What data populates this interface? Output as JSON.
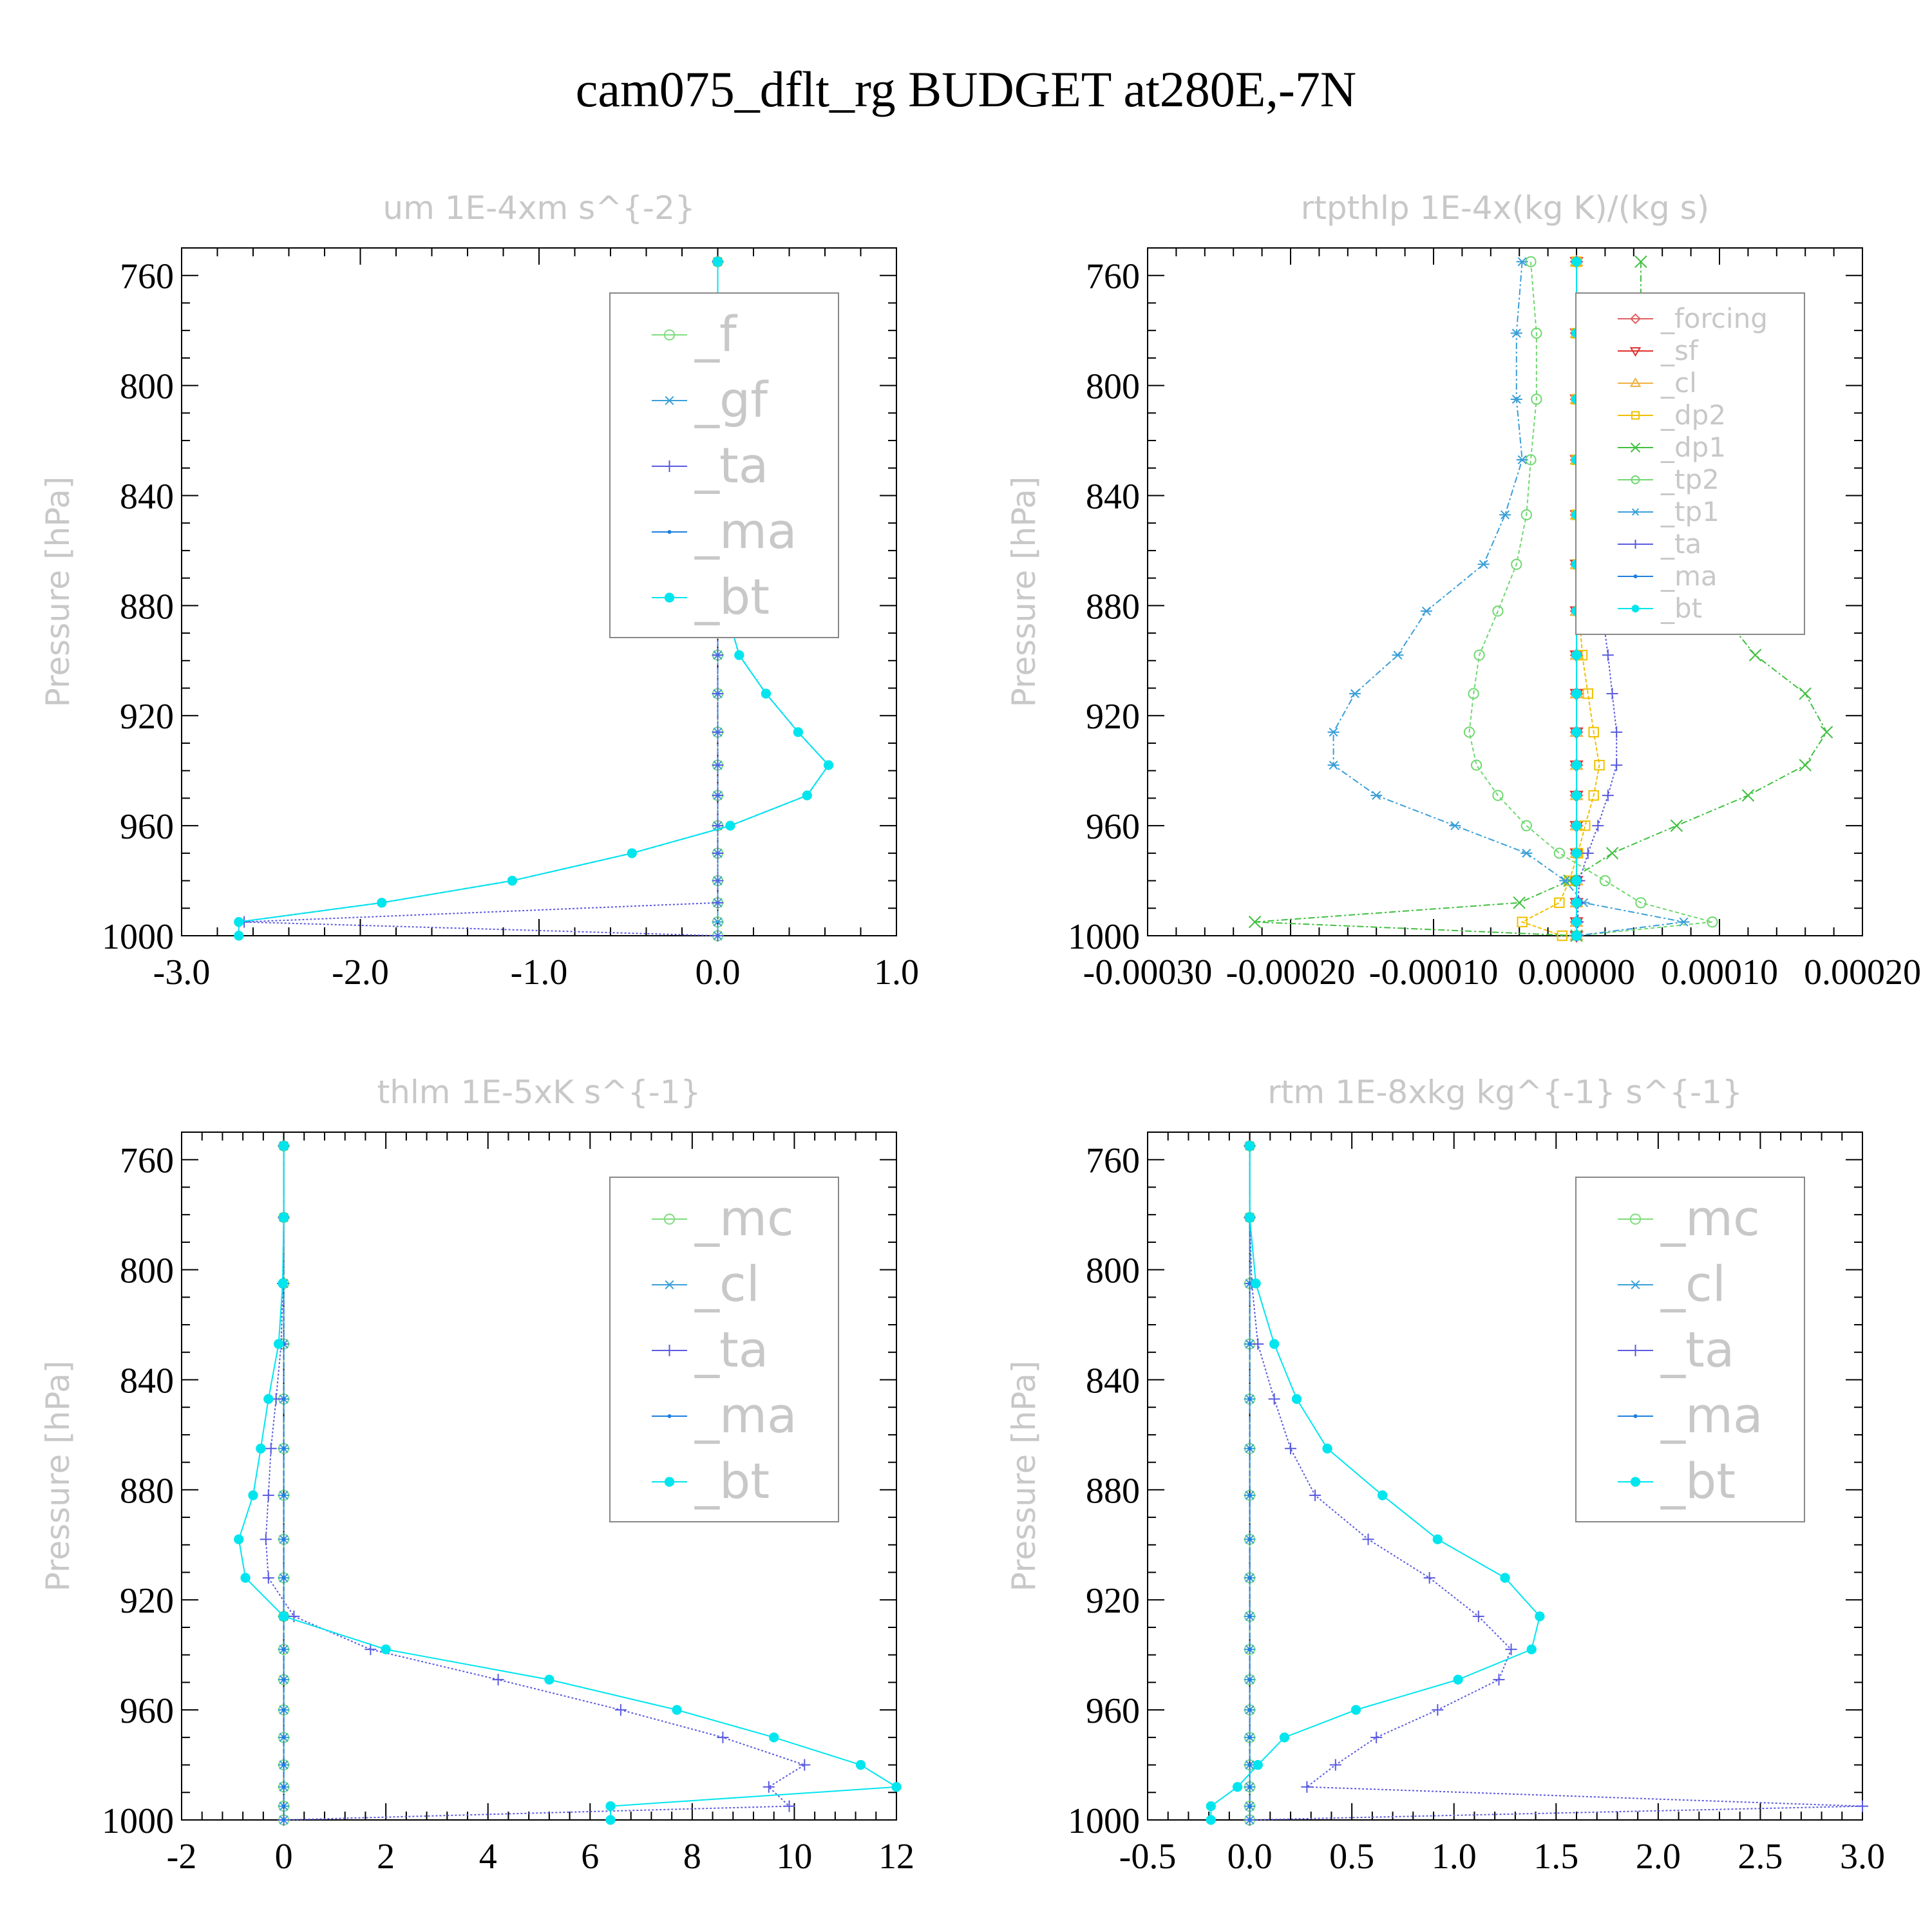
{
  "title": "cam075_dflt_rg  BUDGET at280E,-7N",
  "chart_data": [
    {
      "type": "line",
      "title": "um   1E-4xm s^{-2}",
      "ylabel": "Pressure [hPa]",
      "xlim": [
        -3.0,
        1.0
      ],
      "xticks": [
        "-3.0",
        "-2.0",
        "-1.0",
        "0.0",
        "1.0"
      ],
      "xtick_values": [
        -3,
        -2,
        -1,
        0,
        1
      ],
      "ylim": [
        750,
        1000
      ],
      "yticks": [
        760,
        800,
        840,
        880,
        920,
        960,
        1000
      ],
      "levels": [
        755,
        781,
        805,
        827,
        847,
        865,
        882,
        898,
        912,
        926,
        938,
        949,
        960,
        970,
        980,
        988,
        995,
        1000
      ],
      "legend": {
        "position": "top-right",
        "font_size": "large"
      },
      "series": [
        {
          "name": "_f",
          "color": "#7fdd7f",
          "marker": "circle",
          "dash": "6,4",
          "values": [
            0,
            0,
            0,
            0,
            0,
            0,
            0,
            0,
            0,
            0,
            0,
            0,
            0,
            0,
            0,
            0,
            0,
            0
          ]
        },
        {
          "name": "_gf",
          "color": "#3a9fd8",
          "marker": "star",
          "dash": "10,4,3,4",
          "values": [
            0,
            0,
            0,
            0,
            0,
            0,
            0,
            0,
            0,
            0,
            0,
            0,
            0,
            0,
            0,
            0,
            0,
            0
          ]
        },
        {
          "name": "_ta",
          "color": "#5a5ae0",
          "marker": "plus",
          "dash": "3,3",
          "values": [
            0,
            0,
            0,
            0,
            0,
            0,
            0,
            0,
            0,
            0,
            0,
            0,
            0,
            0,
            0,
            0,
            -2.65,
            0
          ]
        },
        {
          "name": "_ma",
          "color": "#1e7fe0",
          "marker": "dot",
          "dash": "8,4",
          "values": [
            0,
            0,
            0,
            0,
            0.01,
            0.02,
            0.05,
            0.12,
            0.27,
            0.45,
            0.62,
            0.5,
            0.07,
            -0.48,
            -1.15,
            -1.88,
            -2.68,
            -2.68
          ]
        },
        {
          "name": "_bt",
          "color": "#00e5ee",
          "marker": "filled",
          "dash": "",
          "values": [
            0,
            0,
            0,
            0,
            0.01,
            0.02,
            0.05,
            0.12,
            0.27,
            0.45,
            0.62,
            0.5,
            0.07,
            -0.48,
            -1.15,
            -1.88,
            -2.68,
            -2.68
          ]
        }
      ]
    },
    {
      "type": "line",
      "title": "rtpthlp   1E-4x(kg K)/(kg s)",
      "ylabel": "Pressure [hPa]",
      "xlim": [
        -0.0003,
        0.0002
      ],
      "xticks": [
        "-0.00030",
        "-0.00020",
        "-0.00010",
        "0.00000",
        "0.00010",
        "0.00020"
      ],
      "xtick_values": [
        -0.0003,
        -0.0002,
        -0.0001,
        0.0,
        0.0001,
        0.0002
      ],
      "ylim": [
        750,
        1000
      ],
      "yticks": [
        760,
        800,
        840,
        880,
        920,
        960,
        1000
      ],
      "levels": [
        755,
        781,
        805,
        827,
        847,
        865,
        882,
        898,
        912,
        926,
        938,
        949,
        960,
        970,
        980,
        988,
        995,
        1000
      ],
      "legend": {
        "position": "top-right",
        "font_size": "small"
      },
      "series": [
        {
          "name": "_forcing",
          "color": "#e06060",
          "marker": "diamond",
          "dash": "",
          "values": [
            0,
            0,
            0,
            0,
            0,
            0,
            0,
            0,
            0,
            0,
            0,
            0,
            0,
            0,
            0,
            0,
            0,
            0
          ]
        },
        {
          "name": "_sf",
          "color": "#e03030",
          "marker": "tri-down",
          "dash": "",
          "values": [
            0,
            0,
            0,
            0,
            0,
            0,
            0,
            0,
            0,
            0,
            0,
            0,
            0,
            0,
            0,
            0,
            0,
            0
          ]
        },
        {
          "name": "_cl",
          "color": "#f0b040",
          "marker": "tri-up",
          "dash": "",
          "values": [
            0,
            0,
            0,
            0,
            0,
            0,
            0,
            0,
            0,
            0,
            0,
            0,
            0,
            0,
            0,
            0,
            0,
            0
          ]
        },
        {
          "name": "_dp2",
          "color": "#f0c000",
          "marker": "square",
          "dash": "6,3",
          "values": [
            0,
            0,
            0,
            0,
            0,
            1e-06,
            2e-06,
            4e-06,
            8e-06,
            1.2e-05,
            1.6e-05,
            1.2e-05,
            6e-06,
            1e-06,
            -5e-06,
            -1.2e-05,
            -3.8e-05,
            -1e-05
          ]
        },
        {
          "name": "_dp1",
          "color": "#40c040",
          "marker": "x",
          "dash": "10,4,3,4",
          "values": [
            4.5e-05,
            4.5e-05,
            4e-05,
            5e-05,
            6e-05,
            8e-05,
            0.0001,
            0.000125,
            0.00016,
            0.000175,
            0.00016,
            0.00012,
            7e-05,
            2.5e-05,
            -5e-06,
            -4e-05,
            -0.000225,
            0
          ]
        },
        {
          "name": "_tp2",
          "color": "#70d870",
          "marker": "circle",
          "dash": "6,4",
          "values": [
            -3.2e-05,
            -2.8e-05,
            -2.8e-05,
            -3.2e-05,
            -3.5e-05,
            -4.2e-05,
            -5.5e-05,
            -6.8e-05,
            -7.2e-05,
            -7.5e-05,
            -7e-05,
            -5.5e-05,
            -3.5e-05,
            -1.2e-05,
            2e-05,
            4.5e-05,
            9.5e-05,
            0
          ]
        },
        {
          "name": "_tp1",
          "color": "#3a9fd8",
          "marker": "star",
          "dash": "10,4,3,4",
          "values": [
            -3.8e-05,
            -4.2e-05,
            -4.2e-05,
            -3.8e-05,
            -5e-05,
            -6.5e-05,
            -0.000105,
            -0.000125,
            -0.000155,
            -0.00017,
            -0.00017,
            -0.00014,
            -8.5e-05,
            -3.5e-05,
            -8e-06,
            5e-06,
            7.5e-05,
            0
          ]
        },
        {
          "name": "_ta",
          "color": "#5a5ae0",
          "marker": "plus",
          "dash": "3,3",
          "values": [
            0,
            0,
            5e-06,
            1e-05,
            1.2e-05,
            1.5e-05,
            1.8e-05,
            2.2e-05,
            2.5e-05,
            2.8e-05,
            2.8e-05,
            2.2e-05,
            1.5e-05,
            8e-06,
            2e-06,
            1e-06,
            1e-06,
            0
          ]
        },
        {
          "name": "_ma",
          "color": "#1e7fe0",
          "marker": "dot",
          "dash": "8,4",
          "values": [
            0,
            0,
            0,
            0,
            0,
            0,
            0,
            0,
            0,
            0,
            0,
            0,
            0,
            0,
            0,
            0,
            0,
            0
          ]
        },
        {
          "name": "_bt",
          "color": "#00e5ee",
          "marker": "filled",
          "dash": "",
          "values": [
            0,
            0,
            0,
            0,
            0,
            0,
            0,
            0,
            0,
            0,
            0,
            0,
            0,
            0,
            0,
            0,
            0,
            0
          ]
        }
      ]
    },
    {
      "type": "line",
      "title": "thlm   1E-5xK s^{-1}",
      "ylabel": "Pressure [hPa]",
      "xlim": [
        -2,
        12
      ],
      "xticks": [
        "-2",
        "0",
        "2",
        "4",
        "6",
        "8",
        "10",
        "12"
      ],
      "xtick_values": [
        -2,
        0,
        2,
        4,
        6,
        8,
        10,
        12
      ],
      "ylim": [
        750,
        1000
      ],
      "yticks": [
        760,
        800,
        840,
        880,
        920,
        960,
        1000
      ],
      "levels": [
        755,
        781,
        805,
        827,
        847,
        865,
        882,
        898,
        912,
        926,
        938,
        949,
        960,
        970,
        980,
        988,
        995,
        1000
      ],
      "legend": {
        "position": "top-right",
        "font_size": "large"
      },
      "series": [
        {
          "name": "_mc",
          "color": "#7fdd7f",
          "marker": "circle",
          "dash": "6,4",
          "values": [
            0,
            0,
            0,
            0,
            0,
            0,
            0,
            0,
            0,
            0,
            0,
            0,
            0,
            0,
            0,
            0,
            0,
            0
          ]
        },
        {
          "name": "_cl",
          "color": "#3a9fd8",
          "marker": "star",
          "dash": "10,4,3,4",
          "values": [
            0,
            0,
            0,
            0,
            0,
            0,
            0,
            0,
            0,
            0,
            0,
            0,
            0,
            0,
            0,
            0,
            0,
            0
          ]
        },
        {
          "name": "_ta",
          "color": "#5a5ae0",
          "marker": "plus",
          "dash": "3,3",
          "values": [
            0,
            0,
            -0.02,
            -0.05,
            -0.15,
            -0.25,
            -0.3,
            -0.35,
            -0.3,
            0.2,
            1.7,
            4.2,
            6.6,
            8.6,
            10.2,
            9.5,
            9.9,
            0
          ]
        },
        {
          "name": "_ma",
          "color": "#1e7fe0",
          "marker": "dot",
          "dash": "8,4",
          "values": [
            0,
            0,
            0,
            0,
            0,
            0,
            0,
            0,
            0,
            0,
            0,
            0,
            0,
            0,
            0,
            0,
            0,
            0
          ]
        },
        {
          "name": "_bt",
          "color": "#00e5ee",
          "marker": "filled",
          "dash": "",
          "values": [
            0,
            0,
            -0.02,
            -0.1,
            -0.3,
            -0.45,
            -0.6,
            -0.88,
            -0.75,
            0,
            2.0,
            5.2,
            7.7,
            9.6,
            11.3,
            12.0,
            6.4,
            6.4
          ]
        }
      ]
    },
    {
      "type": "line",
      "title": "rtm   1E-8xkg kg^{-1} s^{-1}",
      "ylabel": "Pressure [hPa]",
      "xlim": [
        -0.5,
        3.0
      ],
      "xticks": [
        "-0.5",
        "0.0",
        "0.5",
        "1.0",
        "1.5",
        "2.0",
        "2.5",
        "3.0"
      ],
      "xtick_values": [
        -0.5,
        0.0,
        0.5,
        1.0,
        1.5,
        2.0,
        2.5,
        3.0
      ],
      "ylim": [
        750,
        1000
      ],
      "yticks": [
        760,
        800,
        840,
        880,
        920,
        960,
        1000
      ],
      "levels": [
        755,
        781,
        805,
        827,
        847,
        865,
        882,
        898,
        912,
        926,
        938,
        949,
        960,
        970,
        980,
        988,
        995,
        1000
      ],
      "legend": {
        "position": "top-right",
        "font_size": "large"
      },
      "series": [
        {
          "name": "_mc",
          "color": "#7fdd7f",
          "marker": "circle",
          "dash": "6,4",
          "values": [
            0,
            0,
            0,
            0,
            0,
            0,
            0,
            0,
            0,
            0,
            0,
            0,
            0,
            0,
            0,
            0,
            0,
            0
          ]
        },
        {
          "name": "_cl",
          "color": "#3a9fd8",
          "marker": "star",
          "dash": "10,4,3,4",
          "values": [
            0,
            0,
            0,
            0,
            0,
            0,
            0,
            0,
            0,
            0,
            0,
            0,
            0,
            0,
            0,
            0,
            0,
            0
          ]
        },
        {
          "name": "_ta",
          "color": "#5a5ae0",
          "marker": "plus",
          "dash": "3,3",
          "values": [
            0,
            0,
            0.01,
            0.04,
            0.12,
            0.2,
            0.32,
            0.58,
            0.88,
            1.12,
            1.28,
            1.22,
            0.92,
            0.62,
            0.42,
            0.28,
            3.0,
            0
          ]
        },
        {
          "name": "_ma",
          "color": "#1e7fe0",
          "marker": "dot",
          "dash": "8,4",
          "values": [
            0,
            0,
            0,
            0,
            0,
            0,
            0,
            0,
            0,
            0,
            0,
            0,
            0,
            0,
            0,
            0,
            0,
            0
          ]
        },
        {
          "name": "_bt",
          "color": "#00e5ee",
          "marker": "filled",
          "dash": "",
          "values": [
            0,
            0,
            0.03,
            0.12,
            0.23,
            0.38,
            0.65,
            0.92,
            1.25,
            1.42,
            1.38,
            1.02,
            0.52,
            0.17,
            0.04,
            -0.06,
            -0.19,
            -0.19
          ]
        }
      ]
    }
  ]
}
